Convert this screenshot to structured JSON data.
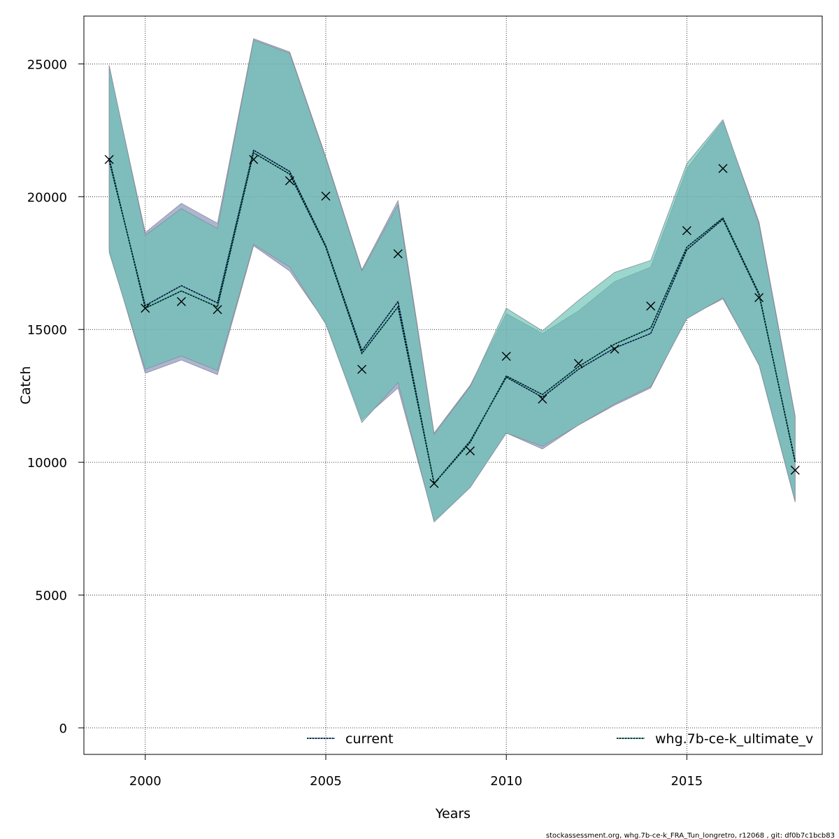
{
  "chart_data": {
    "type": "line",
    "xlabel": "Years",
    "ylabel": "Catch",
    "xlim": [
      1998.3,
      2018.75
    ],
    "ylim": [
      -1000,
      26800
    ],
    "xticks": [
      2000,
      2005,
      2010,
      2015
    ],
    "yticks": [
      0,
      5000,
      10000,
      15000,
      20000,
      25000
    ],
    "grid": true,
    "x": [
      1999,
      2000,
      2001,
      2002,
      2003,
      2004,
      2005,
      2006,
      2007,
      2008,
      2009,
      2010,
      2011,
      2012,
      2013,
      2014,
      2015,
      2016,
      2017,
      2018
    ],
    "observed": {
      "name": "observed catch",
      "marker": "x",
      "values": [
        21400,
        15800,
        16050,
        15750,
        21400,
        20600,
        20020,
        13500,
        17850,
        9200,
        10430,
        13990,
        12380,
        13720,
        14260,
        15880,
        18720,
        21060,
        16200,
        9700
      ]
    },
    "series": [
      {
        "name": "current",
        "line_color": "#3a6fb0",
        "band_color": "#7f8fb8",
        "values": [
          21350,
          15900,
          16650,
          16000,
          21750,
          20950,
          18150,
          14200,
          16050,
          9200,
          10800,
          13200,
          12450,
          13500,
          14300,
          14850,
          18000,
          19150,
          16300,
          10050
        ],
        "lower": [
          18000,
          13350,
          13850,
          13300,
          18150,
          17200,
          15250,
          11600,
          12800,
          7800,
          9050,
          11100,
          10500,
          11400,
          12150,
          12800,
          15450,
          16150,
          13700,
          8550
        ],
        "upper": [
          24900,
          18650,
          19750,
          19000,
          25950,
          25450,
          21500,
          17250,
          19850,
          11100,
          12900,
          15600,
          14850,
          15700,
          16800,
          17350,
          21050,
          22850,
          19050,
          11750
        ]
      },
      {
        "name": "whg.7b-ce-k_ultimate_v",
        "line_color": "#1a8a7a",
        "band_color": "#66c2b0",
        "values": [
          21450,
          15800,
          16450,
          15850,
          21650,
          20850,
          18100,
          14100,
          15850,
          9200,
          10750,
          13250,
          12550,
          13600,
          14450,
          15050,
          18100,
          19200,
          16350,
          10000
        ],
        "lower": [
          17900,
          13500,
          14000,
          13450,
          18200,
          17350,
          15200,
          11500,
          13000,
          7750,
          9050,
          11100,
          10600,
          11400,
          12200,
          12850,
          15400,
          16200,
          13650,
          8500
        ],
        "upper": [
          24950,
          18550,
          19550,
          18800,
          25900,
          25400,
          21450,
          17200,
          19700,
          11050,
          12850,
          15800,
          14950,
          16100,
          17150,
          17600,
          21250,
          22900,
          18950,
          11700
        ]
      }
    ],
    "legend": [
      "current",
      "whg.7b-ce-k_ultimate_v"
    ],
    "legend_position": "bottom"
  },
  "footer": {
    "text": "stockassessment.org, whg.7b-ce-k_FRA_Tun_longretro, r12068 , git: df0b7c1bcb83"
  }
}
